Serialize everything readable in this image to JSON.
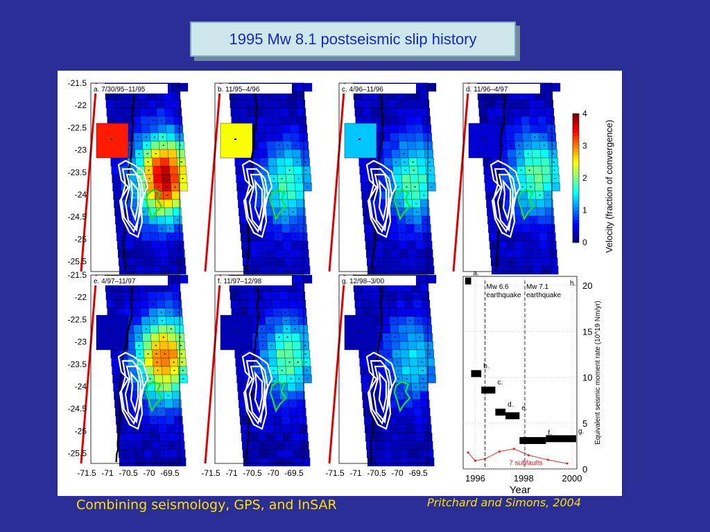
{
  "slide": {
    "title": "1995 Mw 8.1 postseismic slip history",
    "caption_left": "Combining seismology, GPS, and InSAR",
    "caption_right": "Pritchard and Simons, 2004"
  },
  "maps": {
    "lat_ticks": [
      "-21.5",
      "-22",
      "-22.5",
      "-23",
      "-23.5",
      "-24",
      "-24.5",
      "-25",
      "-25.5"
    ],
    "lon_ticks": [
      "-71.5",
      "-71",
      "-70.5",
      "-70",
      "-69.5"
    ],
    "panels": [
      {
        "label": "a. 7/30/95–11/95"
      },
      {
        "label": "b. 11/95–4/96"
      },
      {
        "label": "c. 4/96–11/96"
      },
      {
        "label": "d. 11/96–4/97"
      },
      {
        "label": "e. 4/97–11/97"
      },
      {
        "label": "f. 11/97–12/98"
      },
      {
        "label": "g. 12/98–3/00"
      }
    ]
  },
  "colorbar": {
    "label": "Velocity (fraction of convergence)",
    "ticks": [
      "4",
      "3",
      "2",
      "1",
      "0"
    ]
  },
  "chart_data": {
    "type": "bar",
    "panel_label": "h.",
    "xlabel": "Year",
    "ylabel": "Equivalent seismic moment rate (10^19 Nm/yr)",
    "xlim": [
      1995.5,
      2000.2
    ],
    "ylim": [
      0,
      21
    ],
    "x_ticks": [
      "1996",
      "1998",
      "2000"
    ],
    "y_ticks": [
      "0",
      "5",
      "10",
      "15",
      "20"
    ],
    "intervals": [
      {
        "label": "a.",
        "x0": 1995.58,
        "x1": 1995.83,
        "value": 20.5
      },
      {
        "label": "b.",
        "x0": 1995.83,
        "x1": 1996.25,
        "value": 10.4
      },
      {
        "label": "c.",
        "x0": 1996.25,
        "x1": 1996.83,
        "value": 8.6
      },
      {
        "label": "d.",
        "x0": 1996.83,
        "x1": 1997.25,
        "value": 6.2
      },
      {
        "label": "e.",
        "x0": 1997.25,
        "x1": 1997.83,
        "value": 5.8
      },
      {
        "label": "f.",
        "x0": 1997.83,
        "x1": 1998.92,
        "value": 3.1
      },
      {
        "label": "g.",
        "x0": 1998.92,
        "x1": 2000.17,
        "value": 3.3
      }
    ],
    "events": [
      {
        "label": "Mw 6.6 earthquake",
        "x": 1996.4
      },
      {
        "label": "Mw 7.1 earthquake",
        "x": 1998.05
      }
    ],
    "subfaults": {
      "label": "7 subfaults",
      "x": [
        1995.7,
        1996.0,
        1996.4,
        1997.0,
        1997.6,
        1998.2,
        1999.0,
        1999.8
      ],
      "y": [
        1.8,
        0.9,
        1.1,
        1.9,
        2.2,
        1.5,
        1.0,
        0.6
      ]
    }
  }
}
